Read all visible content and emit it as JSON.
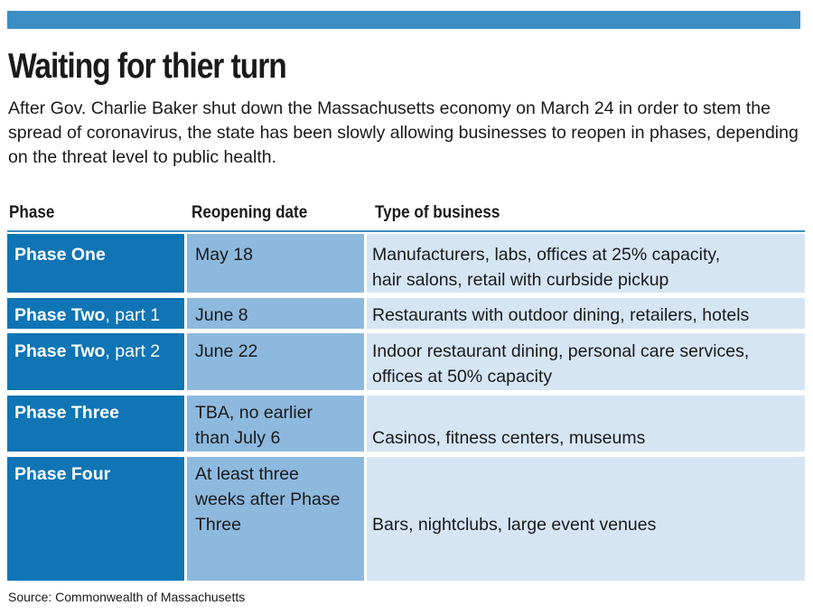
{
  "title": "Waiting for thier turn",
  "subtitle": "After Gov. Charlie Baker shut down the Massachusetts economy on March 24 in order to stem the spread of coronavirus, the state has been slowly allowing businesses to reopen in phases, depending on the threat level to public health.",
  "table": {
    "headers": [
      "Phase",
      "Reopening date",
      "Type of business"
    ],
    "rows": [
      {
        "phase": "Phase One",
        "phase_suffix": "",
        "date_lines": [
          "May 18"
        ],
        "business_lines": [
          "Manufacturers, labs, offices at 25% capacity,",
          "hair salons, retail with curbside pickup"
        ]
      },
      {
        "phase": "Phase Two",
        "phase_suffix": ", part 1",
        "date_lines": [
          "June 8"
        ],
        "business_lines": [
          "Restaurants with outdoor dining, retailers, hotels"
        ]
      },
      {
        "phase": "Phase Two",
        "phase_suffix": ", part 2",
        "date_lines": [
          "June 22"
        ],
        "business_lines": [
          "Indoor restaurant dining, personal care services,",
          "offices at 50% capacity"
        ]
      },
      {
        "phase": "Phase Three",
        "phase_suffix": "",
        "date_lines": [
          "TBA, no earlier",
          "than July 6"
        ],
        "business_lines": [
          "",
          "Casinos, fitness centers, museums"
        ]
      },
      {
        "phase": "Phase Four",
        "phase_suffix": "",
        "date_lines": [
          "At least three",
          "weeks after Phase",
          "Three"
        ],
        "business_lines": [
          "",
          "",
          "Bars, nightclubs, large event venues"
        ]
      }
    ]
  },
  "source": "Source: Commonwealth of Massachusetts",
  "colors": {
    "accent_bar": "#3d8ec4",
    "phase_cell": "#0f75b5",
    "date_cell": "#8db9df",
    "business_cell": "#d6e5f4"
  }
}
